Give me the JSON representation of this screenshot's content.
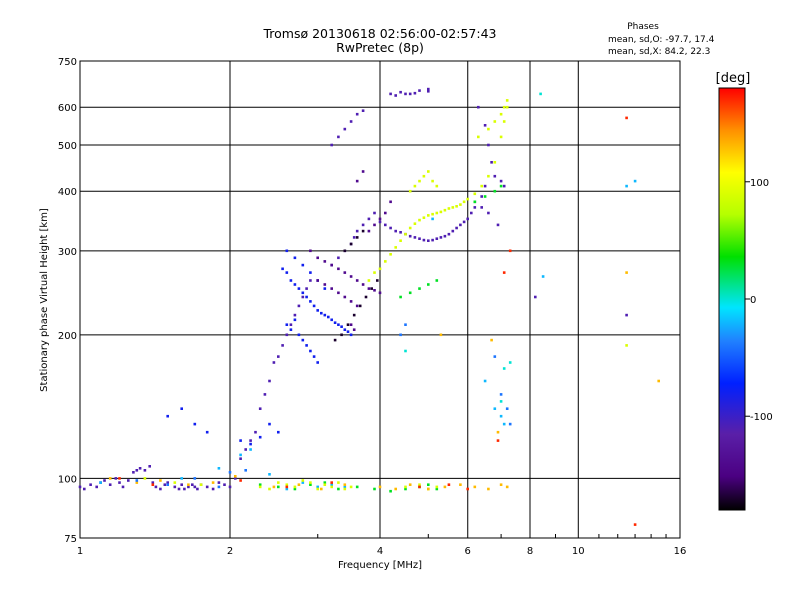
{
  "chart_data": {
    "type": "scatter",
    "title": "Tromsø 20130618 02:56:00-02:57:43",
    "subtitle": "RwPretec (8p)",
    "xlabel": "Frequency [MHz]",
    "ylabel": "Stationary phase Virtual Height [km]",
    "x_scale": "log",
    "y_scale": "log",
    "xlim": [
      1,
      16
    ],
    "ylim": [
      75,
      750
    ],
    "x_ticks": [
      1,
      2,
      4,
      6,
      8,
      10,
      16
    ],
    "y_ticks": [
      75,
      100,
      200,
      300,
      400,
      500,
      600,
      750
    ],
    "grid": true,
    "phase_info": {
      "heading": "Phases",
      "line_o": "mean, sd,O: -97.7, 17.4",
      "line_x": "mean, sd,X:  84.2, 22.3"
    },
    "colorbar": {
      "label": "[deg]",
      "range": [
        -180,
        180
      ],
      "ticks": [
        100,
        0,
        -100
      ],
      "colormap": "rainbow"
    },
    "colors": {
      "black": "#000000",
      "indigo": "#4b0082",
      "purple": "#5a1fa8",
      "blue": "#0020ff",
      "azure": "#2080ff",
      "cyan": "#00e5ff",
      "green": "#00e000",
      "lime": "#b5ff00",
      "yellow": "#ffff00",
      "orange": "#ff9000",
      "red": "#ff0000"
    },
    "series": [
      {
        "phase_deg": -110,
        "x": [
          1.0,
          1.02,
          1.05,
          1.08,
          1.1,
          1.12,
          1.15,
          1.18,
          1.2,
          1.22,
          1.25,
          1.28,
          1.3,
          1.32,
          1.35,
          1.38,
          1.4,
          1.42,
          1.45,
          1.48,
          1.5,
          1.55,
          1.58,
          1.6,
          1.62,
          1.65,
          1.68,
          1.7,
          1.72,
          1.75,
          1.8,
          1.85,
          1.9,
          1.95,
          2.0,
          2.05,
          2.1,
          2.15,
          2.2,
          2.25,
          2.3,
          2.35,
          2.4,
          2.45,
          2.5,
          2.55,
          2.6,
          2.65,
          2.7,
          2.75,
          2.8,
          2.85,
          2.9,
          3.2,
          3.3,
          3.4,
          3.5,
          3.55,
          3.6,
          3.7,
          3.8,
          3.9,
          4.0,
          4.1,
          4.2,
          4.3,
          4.4,
          4.5,
          4.6,
          4.7,
          4.8,
          4.9,
          5.0,
          5.1,
          5.2,
          5.3,
          5.4,
          5.5,
          5.6,
          5.7,
          5.8,
          5.9,
          6.0,
          6.1,
          6.2,
          6.4,
          6.5,
          4.2,
          4.4,
          4.6,
          4.8,
          5.0,
          4.3,
          4.5,
          4.7,
          5.0,
          6.3,
          6.5,
          6.6,
          6.7,
          6.8,
          7.0,
          7.1,
          6.2,
          6.4,
          6.6,
          6.9,
          8.2,
          12.5,
          3.2,
          3.3,
          3.4,
          3.5,
          3.6,
          3.7
        ],
        "y": [
          96,
          95,
          97,
          96,
          98,
          99,
          97,
          100,
          98,
          96,
          99,
          103,
          104,
          105,
          104,
          106,
          98,
          96,
          95,
          97,
          98,
          96,
          95,
          97,
          95,
          96,
          97,
          96,
          95,
          97,
          96,
          95,
          98,
          97,
          96,
          100,
          110,
          115,
          120,
          125,
          140,
          150,
          160,
          175,
          180,
          190,
          200,
          210,
          220,
          230,
          240,
          250,
          260,
          280,
          290,
          300,
          310,
          320,
          330,
          340,
          350,
          360,
          345,
          340,
          335,
          330,
          328,
          325,
          322,
          320,
          318,
          316,
          315,
          316,
          318,
          320,
          322,
          325,
          330,
          335,
          340,
          345,
          350,
          360,
          370,
          390,
          410,
          640,
          645,
          640,
          650,
          648,
          635,
          640,
          642,
          655,
          600,
          550,
          500,
          460,
          430,
          420,
          410,
          380,
          370,
          360,
          340,
          240,
          220,
          500,
          520,
          540,
          560,
          580,
          590
        ]
      },
      {
        "phase_deg": -80,
        "x": [
          2.55,
          2.6,
          2.65,
          2.7,
          2.75,
          2.8,
          2.85,
          2.9,
          2.95,
          3.0,
          3.05,
          3.1,
          3.15,
          3.2,
          3.25,
          3.3,
          3.35,
          3.4,
          3.45,
          3.5,
          2.6,
          2.7,
          2.8,
          2.9,
          3.0,
          3.1,
          2.6,
          2.65,
          2.7,
          2.75,
          2.8,
          2.85,
          2.9,
          2.95,
          3.0,
          1.5,
          1.6,
          1.7,
          1.8,
          2.1,
          2.2,
          2.3,
          2.4,
          2.5
        ],
        "y": [
          275,
          270,
          260,
          255,
          250,
          245,
          240,
          235,
          230,
          225,
          222,
          220,
          218,
          215,
          212,
          210,
          208,
          205,
          203,
          200,
          300,
          290,
          280,
          270,
          260,
          250,
          210,
          205,
          215,
          200,
          195,
          190,
          185,
          180,
          175,
          135,
          140,
          130,
          125,
          120,
          118,
          122,
          130,
          125
        ]
      },
      {
        "phase_deg": -140,
        "x": [
          2.9,
          3.0,
          3.1,
          3.2,
          3.3,
          3.4,
          3.5,
          3.6,
          3.7,
          3.8,
          3.9,
          4.0,
          3.0,
          3.1,
          3.2,
          3.3,
          3.4,
          3.5,
          3.6,
          3.8,
          3.9,
          4.0,
          4.1,
          4.2,
          3.6,
          3.7,
          3.5,
          3.55
        ],
        "y": [
          300,
          290,
          285,
          280,
          275,
          270,
          265,
          260,
          255,
          250,
          248,
          245,
          260,
          255,
          250,
          245,
          240,
          235,
          230,
          330,
          340,
          350,
          360,
          380,
          420,
          440,
          210,
          205
        ]
      },
      {
        "phase_deg": -170,
        "x": [
          3.25,
          3.35,
          3.45,
          3.55,
          3.65,
          3.75,
          3.85,
          3.95,
          3.4,
          3.5,
          3.6,
          3.7
        ],
        "y": [
          195,
          200,
          210,
          220,
          230,
          240,
          250,
          260,
          300,
          310,
          320,
          330
        ]
      },
      {
        "phase_deg": -20,
        "x": [
          1.1,
          1.6,
          1.9,
          2.1,
          2.2,
          2.4,
          2.6,
          2.8,
          3.0,
          3.2,
          3.4,
          5.1,
          6.5,
          6.8,
          7.0,
          7.1,
          8.5,
          12.5,
          13.0
        ],
        "y": [
          98,
          100,
          105,
          112,
          115,
          102,
          95,
          98,
          96,
          97,
          96,
          350,
          160,
          140,
          135,
          130,
          265,
          410,
          420
        ]
      },
      {
        "phase_deg": 30,
        "x": [
          2.3,
          2.5,
          2.7,
          2.9,
          3.1,
          3.3,
          3.6,
          3.9,
          4.2,
          4.5,
          4.8,
          5.0,
          5.2,
          6.2,
          6.5,
          6.8,
          7.0,
          4.4,
          4.6,
          4.8,
          5.0,
          5.2
        ],
        "y": [
          97,
          96,
          95,
          97,
          98,
          95,
          96,
          95,
          94,
          95,
          96,
          97,
          95,
          380,
          390,
          400,
          410,
          240,
          245,
          250,
          255,
          260
        ]
      },
      {
        "phase_deg": 90,
        "x": [
          2.3,
          2.4,
          2.5,
          2.6,
          2.7,
          2.8,
          2.9,
          3.0,
          3.1,
          3.2,
          3.3,
          3.4,
          3.5,
          3.8,
          3.9,
          4.0,
          4.1,
          4.2,
          4.3,
          4.4,
          4.5,
          4.6,
          4.7,
          4.8,
          4.9,
          5.0,
          5.1,
          5.2,
          5.3,
          5.4,
          5.5,
          5.6,
          5.7,
          5.8,
          5.9,
          6.0,
          6.2,
          6.4,
          6.6,
          6.8,
          7.0,
          7.1,
          7.2,
          4.6,
          4.7,
          4.8,
          4.9,
          5.0,
          5.1,
          5.2,
          6.3,
          6.6,
          6.8,
          7.0,
          7.1,
          7.2,
          4.5,
          4.8,
          5.0,
          5.2,
          1.35,
          1.55,
          1.75,
          12.5
        ],
        "y": [
          96,
          95,
          98,
          97,
          96,
          99,
          98,
          95,
          97,
          96,
          98,
          95,
          96,
          260,
          270,
          275,
          285,
          295,
          305,
          315,
          325,
          335,
          342,
          348,
          352,
          356,
          358,
          360,
          362,
          365,
          368,
          370,
          372,
          375,
          380,
          385,
          395,
          410,
          430,
          460,
          520,
          560,
          600,
          400,
          410,
          420,
          430,
          440,
          420,
          410,
          520,
          540,
          560,
          580,
          600,
          620,
          96,
          97,
          95,
          96,
          100,
          98,
          97,
          190
        ]
      },
      {
        "phase_deg": 130,
        "x": [
          1.15,
          1.3,
          1.45,
          1.65,
          1.85,
          2.05,
          2.45,
          2.75,
          3.05,
          3.4,
          4.0,
          4.3,
          4.6,
          5.0,
          5.4,
          5.8,
          6.2,
          6.6,
          7.0,
          7.2,
          6.9,
          12.5,
          14.5,
          5.3,
          6.7
        ],
        "y": [
          100,
          98,
          99,
          97,
          98,
          101,
          96,
          97,
          95,
          97,
          96,
          95,
          97,
          95,
          96,
          97,
          96,
          95,
          97,
          96,
          125,
          270,
          160,
          200,
          195
        ]
      },
      {
        "phase_deg": 170,
        "x": [
          1.2,
          1.4,
          2.1,
          2.6,
          3.2,
          4.8,
          5.5,
          6.0,
          6.9,
          7.1,
          7.3,
          12.5,
          13.0
        ],
        "y": [
          100,
          97,
          99,
          96,
          98,
          96,
          97,
          95,
          120,
          270,
          300,
          570,
          80
        ]
      },
      {
        "phase_deg": -40,
        "x": [
          1.3,
          1.5,
          1.7,
          1.9,
          2.0,
          2.15,
          6.8,
          7.0,
          7.2,
          7.3,
          4.4,
          4.5
        ],
        "y": [
          99,
          97,
          100,
          96,
          103,
          104,
          180,
          150,
          140,
          130,
          200,
          210
        ]
      },
      {
        "phase_deg": 0,
        "x": [
          7.1,
          7.3,
          8.4,
          7.0,
          4.5
        ],
        "y": [
          170,
          175,
          640,
          145,
          185
        ]
      }
    ]
  }
}
